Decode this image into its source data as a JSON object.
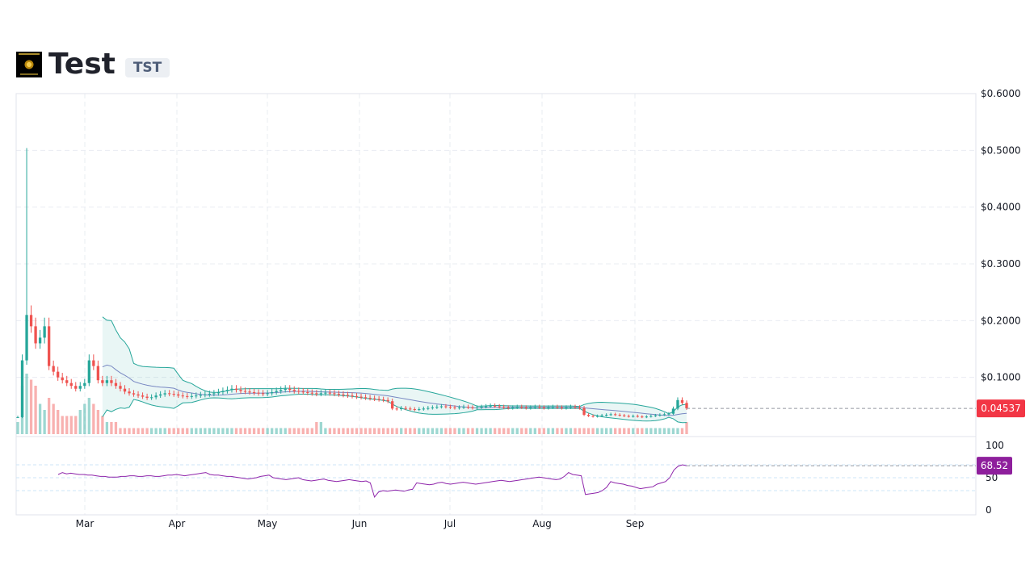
{
  "header": {
    "title": "Test",
    "ticker": "TST"
  },
  "colors": {
    "up": "#26a69a",
    "down": "#ef5350",
    "bollinger": "#26a69a",
    "ma": "#5b6bb5",
    "rsi": "#8e24aa",
    "price_badge": "#f23645",
    "rsi_badge": "#8e1f9c",
    "grid": "#e9ecf2"
  },
  "chart_data": [
    {
      "type": "candlestick",
      "title": "",
      "y_ticks": [
        "$0.6000",
        "$0.5000",
        "$0.4000",
        "$0.3000",
        "$0.2000",
        "$0.1000"
      ],
      "y_tick_values": [
        0.6,
        0.5,
        0.4,
        0.3,
        0.2,
        0.1
      ],
      "x_ticks": [
        "Mar",
        "Apr",
        "May",
        "Jun",
        "Jul",
        "Aug",
        "Sep"
      ],
      "ylim": [
        0.0,
        0.6
      ],
      "last_price_label": "0.04537",
      "last_price": 0.04537,
      "grid": true,
      "overlays": [
        "bollinger-bands",
        "moving-average",
        "volume"
      ],
      "close_series": [
        0.03,
        0.13,
        0.21,
        0.19,
        0.16,
        0.17,
        0.19,
        0.12,
        0.11,
        0.1,
        0.095,
        0.09,
        0.085,
        0.08,
        0.085,
        0.09,
        0.13,
        0.12,
        0.095,
        0.09,
        0.095,
        0.09,
        0.085,
        0.08,
        0.075,
        0.072,
        0.07,
        0.068,
        0.066,
        0.064,
        0.065,
        0.068,
        0.07,
        0.072,
        0.071,
        0.07,
        0.068,
        0.067,
        0.066,
        0.067,
        0.068,
        0.069,
        0.07,
        0.071,
        0.072,
        0.074,
        0.076,
        0.078,
        0.08,
        0.078,
        0.076,
        0.075,
        0.074,
        0.073,
        0.072,
        0.071,
        0.072,
        0.074,
        0.076,
        0.078,
        0.08,
        0.078,
        0.076,
        0.075,
        0.074,
        0.073,
        0.072,
        0.071,
        0.072,
        0.073,
        0.072,
        0.071,
        0.07,
        0.069,
        0.068,
        0.067,
        0.066,
        0.065,
        0.064,
        0.063,
        0.062,
        0.061,
        0.06,
        0.058,
        0.045,
        0.044,
        0.046,
        0.045,
        0.044,
        0.043,
        0.044,
        0.045,
        0.046,
        0.047,
        0.048,
        0.049,
        0.048,
        0.047,
        0.046,
        0.047,
        0.048,
        0.047,
        0.046,
        0.047,
        0.048,
        0.049,
        0.05,
        0.049,
        0.048,
        0.047,
        0.046,
        0.047,
        0.048,
        0.047,
        0.046,
        0.047,
        0.048,
        0.047,
        0.046,
        0.047,
        0.048,
        0.047,
        0.046,
        0.047,
        0.048,
        0.047,
        0.046,
        0.034,
        0.032,
        0.031,
        0.032,
        0.033,
        0.034,
        0.035,
        0.034,
        0.033,
        0.032,
        0.031,
        0.032,
        0.031,
        0.03,
        0.031,
        0.032,
        0.033,
        0.034,
        0.035,
        0.036,
        0.045,
        0.06,
        0.055,
        0.04537
      ],
      "volume_series": [
        0.02,
        0.08,
        0.1,
        0.09,
        0.08,
        0.05,
        0.04,
        0.06,
        0.05,
        0.04,
        0.03,
        0.03,
        0.03,
        0.03,
        0.04,
        0.05,
        0.06,
        0.05,
        0.04,
        0.03,
        0.02,
        0.02,
        0.02,
        0.01,
        0.01,
        0.01,
        0.01,
        0.01,
        0.01,
        0.01,
        0.01,
        0.01,
        0.01,
        0.01,
        0.01,
        0.01,
        0.01,
        0.01,
        0.01,
        0.01,
        0.01,
        0.01,
        0.01,
        0.01,
        0.01,
        0.01,
        0.01,
        0.01,
        0.01,
        0.01,
        0.01,
        0.01,
        0.01,
        0.01,
        0.01,
        0.01,
        0.01,
        0.01,
        0.01,
        0.01,
        0.01,
        0.01,
        0.01,
        0.01,
        0.01,
        0.01,
        0.01,
        0.02,
        0.02,
        0.01,
        0.01,
        0.01,
        0.01,
        0.01,
        0.01,
        0.01,
        0.01,
        0.01,
        0.01,
        0.01,
        0.01,
        0.01,
        0.01,
        0.01,
        0.01,
        0.01,
        0.01,
        0.01,
        0.01,
        0.01,
        0.01,
        0.01,
        0.01,
        0.01,
        0.01,
        0.01,
        0.01,
        0.01,
        0.01,
        0.01,
        0.01,
        0.01,
        0.01,
        0.01,
        0.01,
        0.01,
        0.01,
        0.01,
        0.01,
        0.01,
        0.01,
        0.01,
        0.01,
        0.01,
        0.01,
        0.01,
        0.01,
        0.01,
        0.01,
        0.01,
        0.01,
        0.01,
        0.01,
        0.01,
        0.01,
        0.01,
        0.01,
        0.01,
        0.01,
        0.01,
        0.01,
        0.01,
        0.01,
        0.01,
        0.01,
        0.01,
        0.01,
        0.01,
        0.01,
        0.01,
        0.01,
        0.01,
        0.01,
        0.01,
        0.01,
        0.01,
        0.01,
        0.01,
        0.01,
        0.01,
        0.02,
        0.04,
        0.07,
        0.06
      ]
    },
    {
      "type": "line",
      "title": "",
      "y_ticks": [
        "100",
        "50",
        "0"
      ],
      "y_tick_values": [
        100,
        50,
        0
      ],
      "ylim": [
        0,
        100
      ],
      "last_value_label": "68.52",
      "last_value": 68.52,
      "reference_levels": [
        70,
        50,
        30
      ],
      "series": [
        {
          "values": [
            55,
            58,
            56,
            57,
            56,
            55,
            55,
            54,
            54,
            53,
            52,
            52,
            51,
            51,
            51,
            52,
            52,
            53,
            53,
            52,
            52,
            53,
            53,
            52,
            52,
            53,
            54,
            54,
            55,
            54,
            53,
            54,
            55,
            56,
            57,
            58,
            55,
            54,
            54,
            53,
            52,
            52,
            51,
            50,
            49,
            48,
            49,
            50,
            52,
            53,
            54,
            50,
            49,
            48,
            47,
            48,
            49,
            50,
            47,
            46,
            45,
            46,
            47,
            48,
            46,
            45,
            44,
            45,
            46,
            47,
            46,
            45,
            44,
            45,
            42,
            20,
            28,
            30,
            29,
            30,
            31,
            30,
            29,
            31,
            32,
            42,
            41,
            40,
            39,
            40,
            42,
            43,
            41,
            40,
            41,
            42,
            43,
            42,
            41,
            40,
            41,
            42,
            43,
            44,
            45,
            46,
            45,
            44,
            45,
            46,
            47,
            48,
            49,
            50,
            51,
            50,
            49,
            48,
            47,
            48,
            52,
            58,
            55,
            54,
            53,
            24,
            25,
            26,
            27,
            30,
            35,
            44,
            42,
            41,
            40,
            38,
            37,
            35,
            33,
            34,
            35,
            36,
            40,
            42,
            44,
            50,
            62,
            68,
            70,
            68.52
          ]
        }
      ]
    }
  ]
}
